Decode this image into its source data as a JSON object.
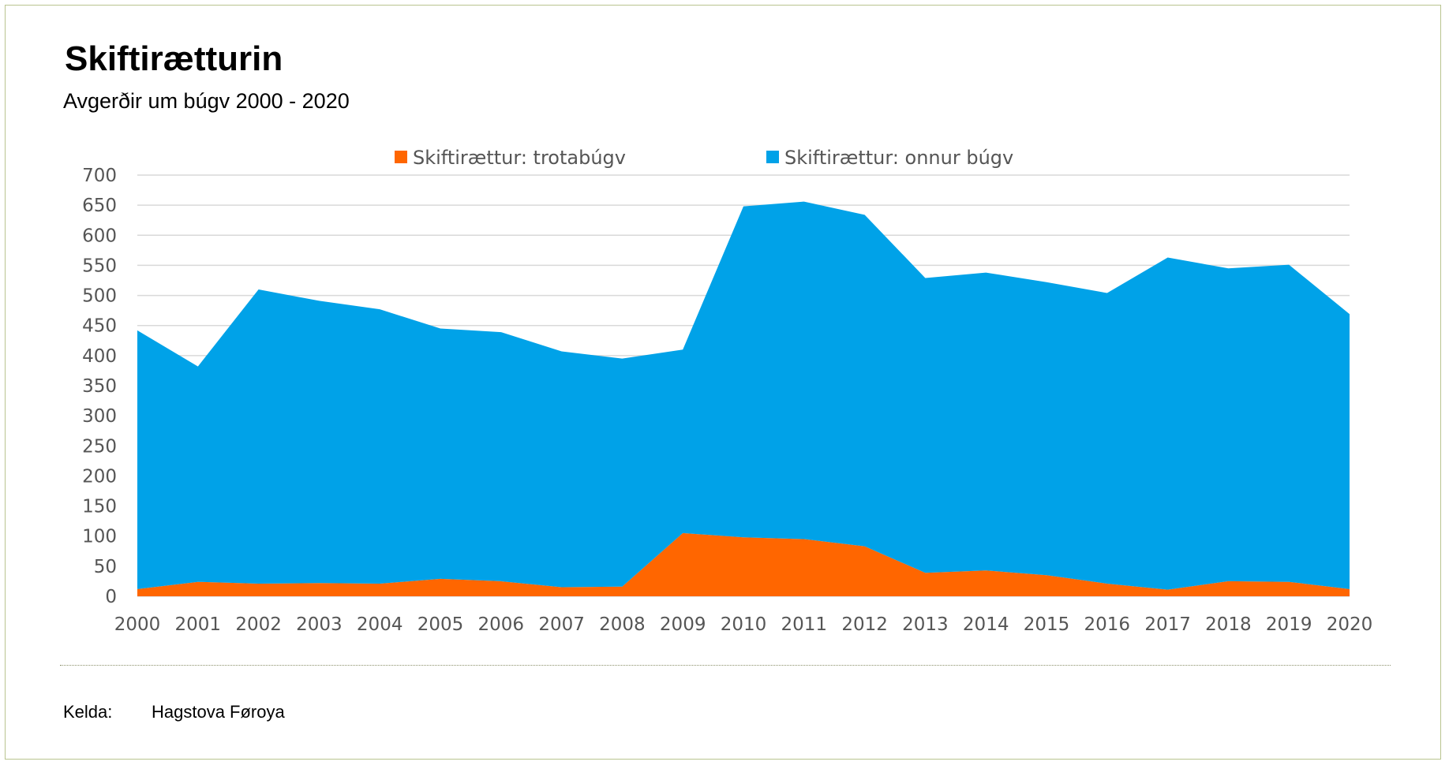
{
  "title": "Skiftirætturin",
  "subtitle": "Avgerðir um búgv 2000 - 2020",
  "source": {
    "label": "Kelda:",
    "value": "Hagstova Føroya"
  },
  "chart_data": {
    "type": "area",
    "stacked": true,
    "x": [
      "2000",
      "2001",
      "2002",
      "2003",
      "2004",
      "2005",
      "2006",
      "2007",
      "2008",
      "2009",
      "2010",
      "2011",
      "2012",
      "2013",
      "2014",
      "2015",
      "2016",
      "2017",
      "2018",
      "2019",
      "2020"
    ],
    "series": [
      {
        "name": "Skiftirættur: trotabúgv",
        "color": "#ff6600",
        "values": [
          12,
          24,
          21,
          22,
          21,
          29,
          25,
          15,
          16,
          105,
          98,
          95,
          83,
          39,
          43,
          35,
          21,
          11,
          25,
          24,
          12
        ]
      },
      {
        "name": "Skiftirættur: onnur búgv",
        "color": "#00a2e8",
        "values": [
          430,
          358,
          489,
          469,
          456,
          416,
          414,
          392,
          379,
          305,
          550,
          561,
          551,
          490,
          495,
          487,
          483,
          552,
          520,
          527,
          457
        ]
      }
    ],
    "ylim": [
      0,
      700
    ],
    "yticks": [
      0,
      50,
      100,
      150,
      200,
      250,
      300,
      350,
      400,
      450,
      500,
      550,
      600,
      650,
      700
    ],
    "grid": true,
    "legend": "top"
  }
}
